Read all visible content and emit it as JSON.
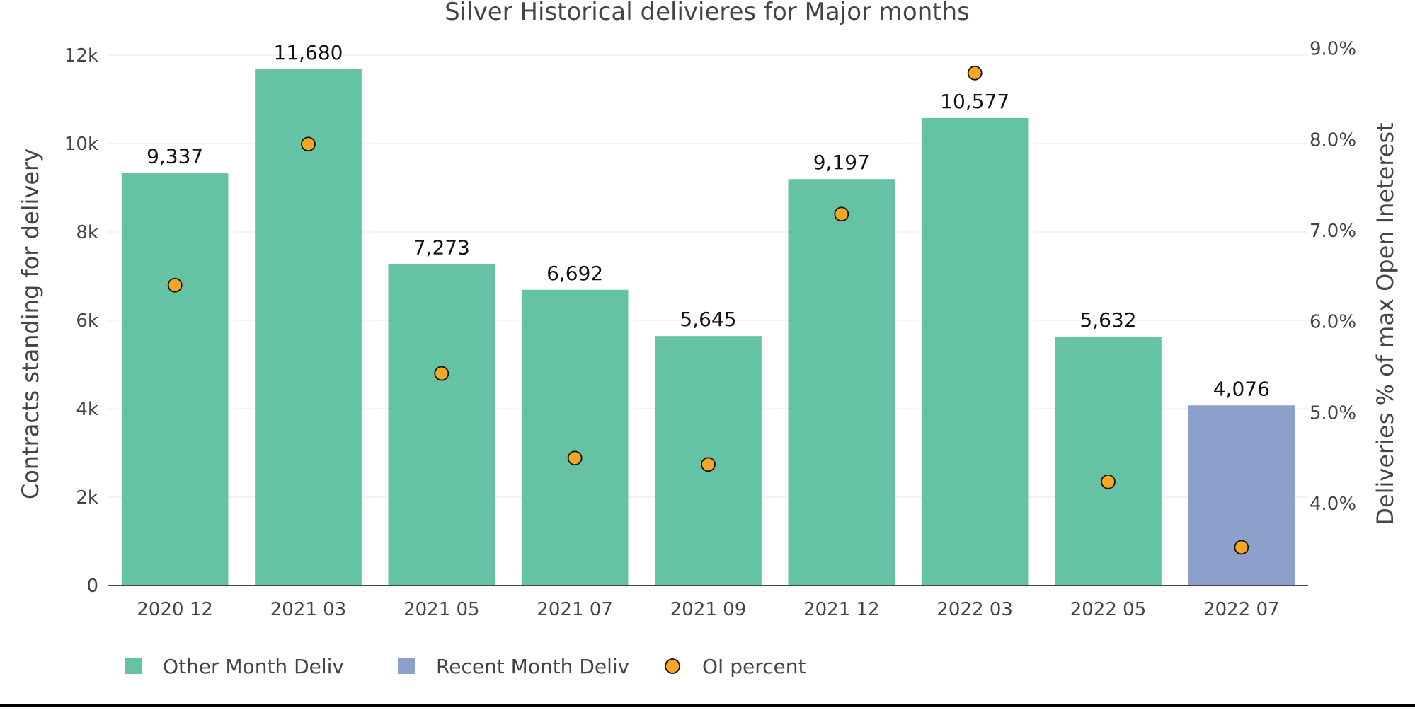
{
  "chart_data": {
    "type": "bar",
    "title": "Silver Historical delivieres for Major months",
    "categories": [
      "2020 12",
      "2021 03",
      "2021 05",
      "2021 07",
      "2021 09",
      "2021 12",
      "2022 03",
      "2022 05",
      "2022 07"
    ],
    "series": [
      {
        "name": "Other Month Deliv",
        "type": "bar",
        "axis": "left",
        "color": "#66c2a5",
        "values": [
          9337,
          11680,
          7273,
          6692,
          5645,
          9197,
          10577,
          5632,
          null
        ]
      },
      {
        "name": "Recent Month Deliv",
        "type": "bar",
        "axis": "left",
        "color": "#8da0cb",
        "values": [
          null,
          null,
          null,
          null,
          null,
          null,
          null,
          null,
          4076
        ]
      },
      {
        "name": "OI percent",
        "type": "scatter",
        "axis": "right",
        "color": "#f5a623",
        "values": [
          6.4,
          7.95,
          5.43,
          4.5,
          4.43,
          7.18,
          8.73,
          4.24,
          3.52
        ]
      }
    ],
    "bar_labels": [
      "9,337",
      "11,680",
      "7,273",
      "6,692",
      "5,645",
      "9,197",
      "10,577",
      "5,632",
      "4,076"
    ],
    "ylabel": "Contracts standing for delivery",
    "y2label": "Deliveries % of max Open Ineterest",
    "ylim": [
      0,
      12000
    ],
    "y2lim": [
      3.1,
      8.95
    ],
    "yticks": [
      0,
      2000,
      4000,
      6000,
      8000,
      10000,
      12000
    ],
    "ytick_labels": [
      "0",
      "2k",
      "4k",
      "6k",
      "8k",
      "10k",
      "12k"
    ],
    "y2ticks": [
      4.0,
      5.0,
      6.0,
      7.0,
      8.0,
      9.0
    ],
    "y2tick_labels": [
      "4.0%",
      "5.0%",
      "6.0%",
      "7.0%",
      "8.0%",
      "9.0%"
    ],
    "grid": true,
    "legend": {
      "placement": "bottom-left",
      "entries": [
        "Other Month Deliv",
        "Recent Month Deliv",
        "OI percent"
      ]
    }
  }
}
